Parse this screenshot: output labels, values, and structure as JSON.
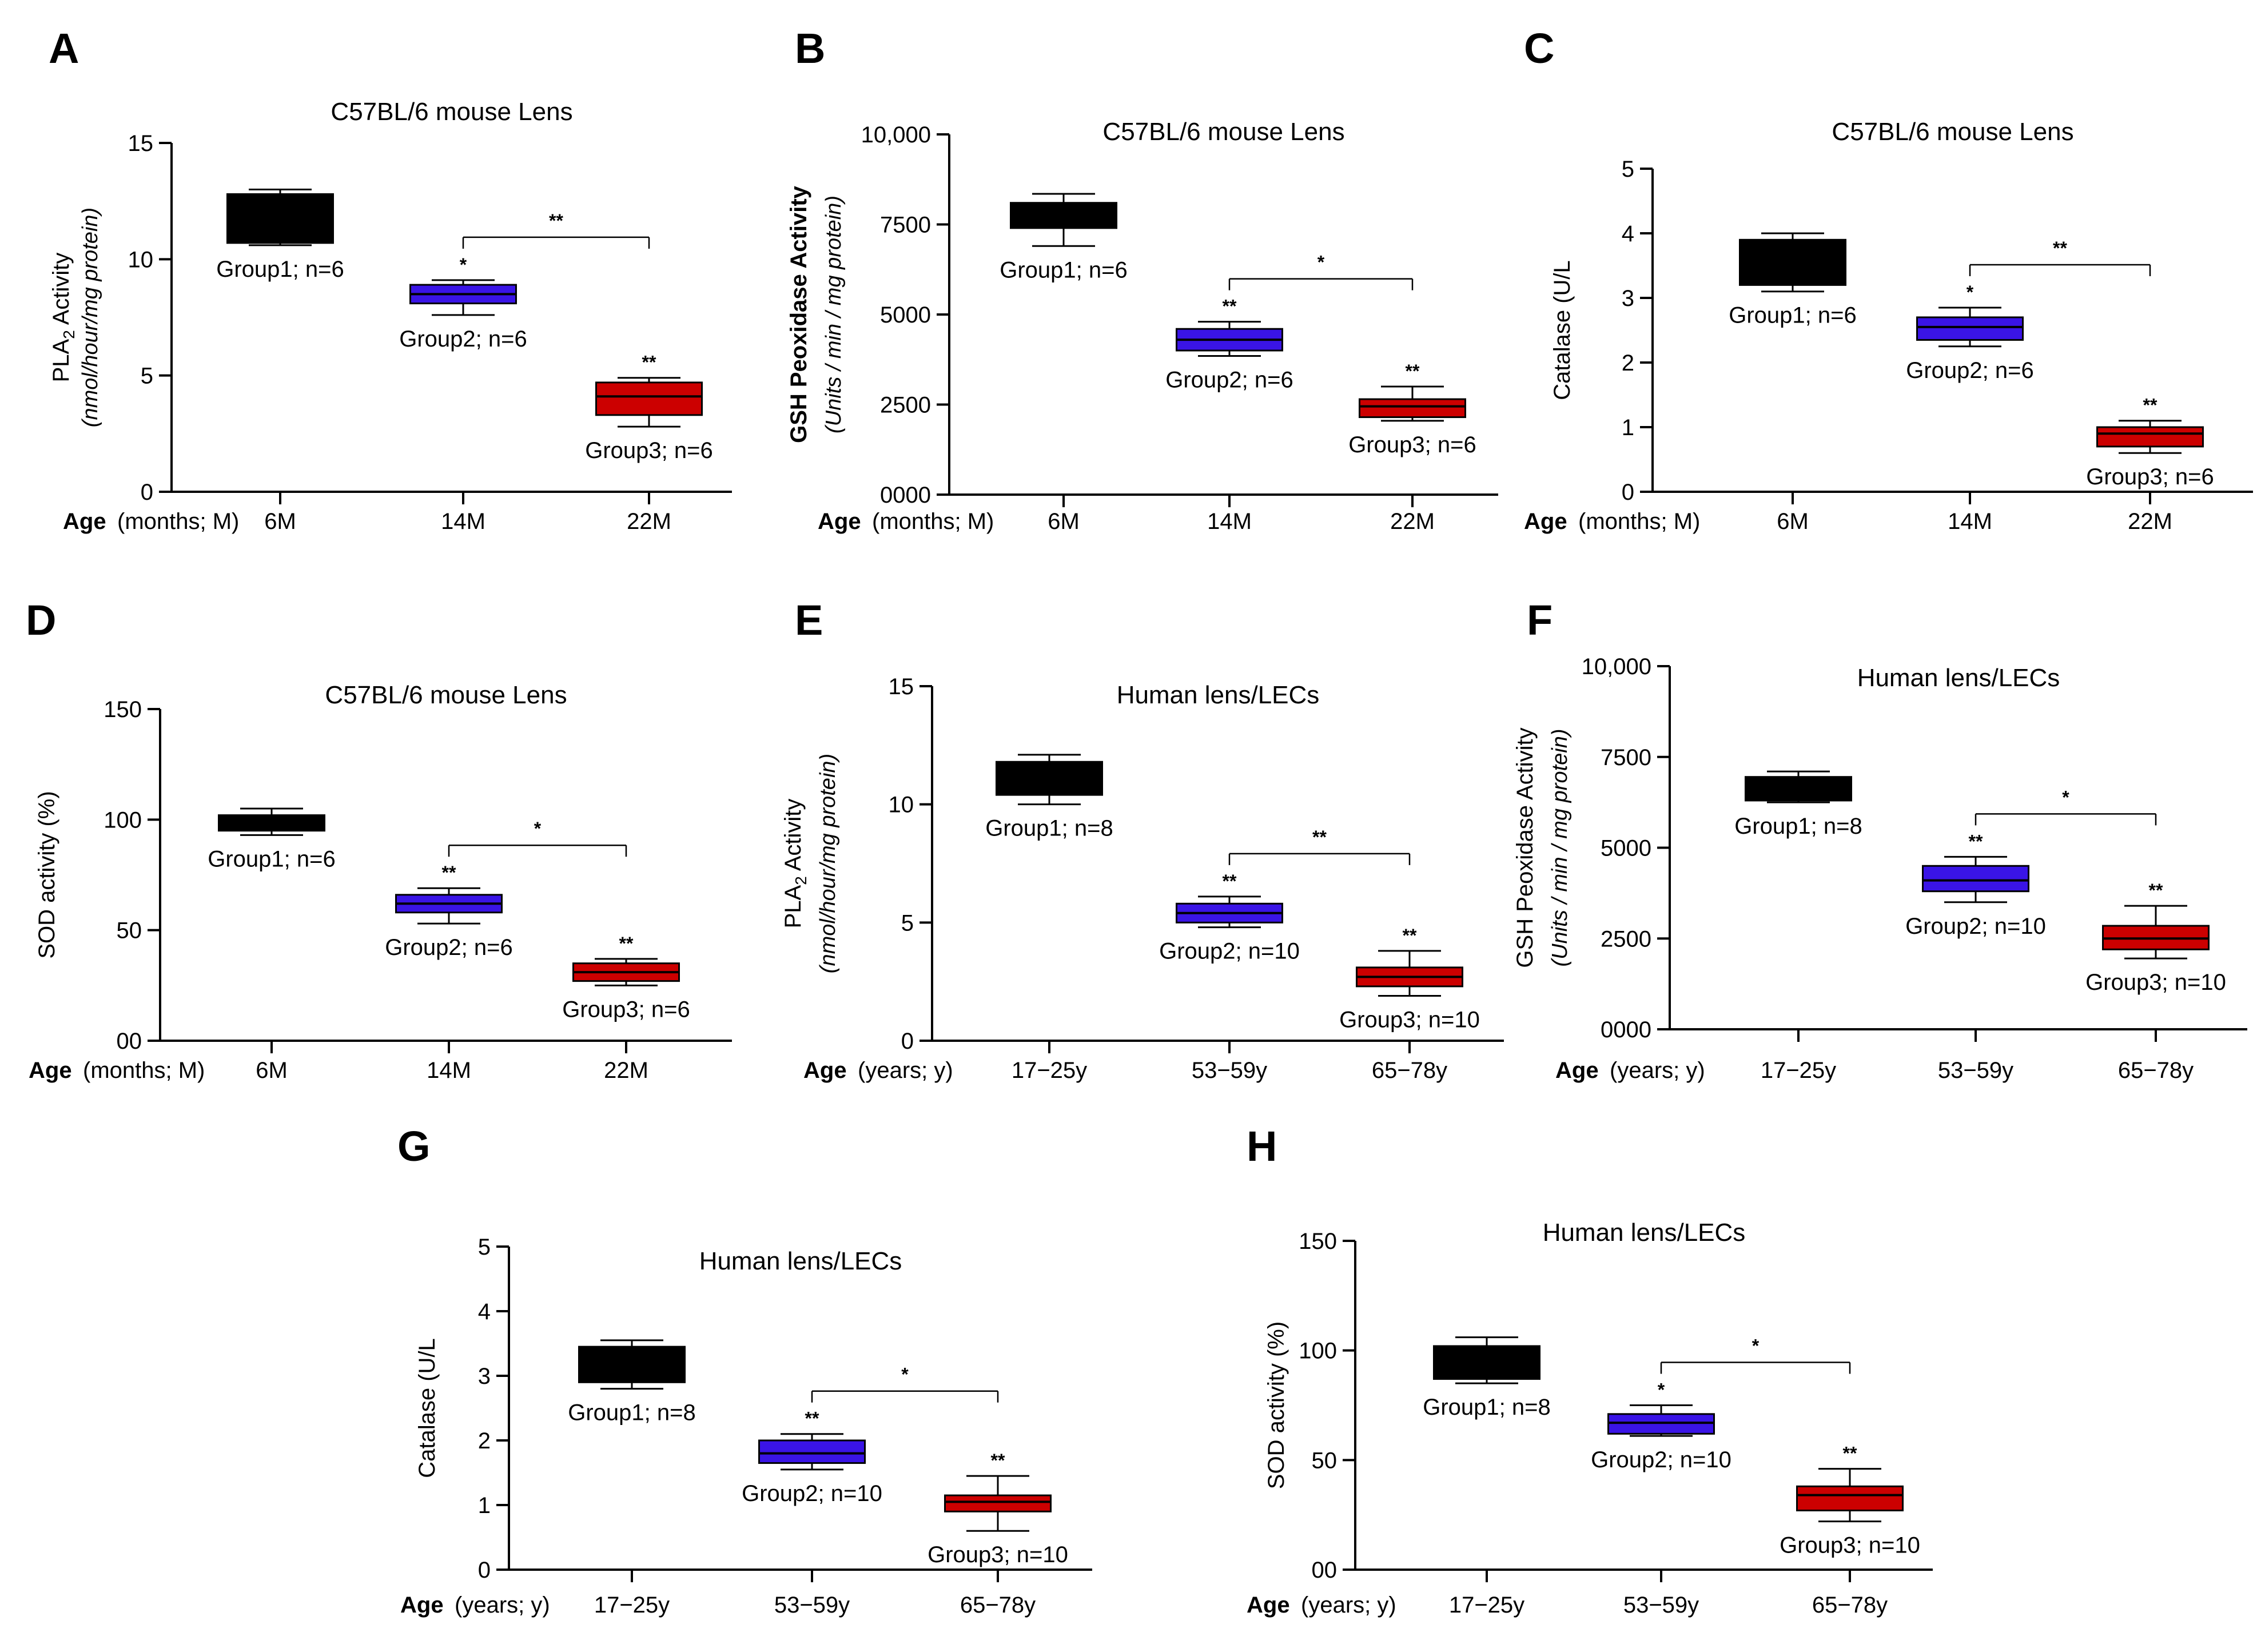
{
  "chart_data": [
    {
      "panel": "A",
      "type": "box",
      "title": "C57BL/6 mouse Lens",
      "ylabel": "PLA2 Activity",
      "ylabel_sub": "2",
      "ylabel_after": " Activity",
      "ylabel_main": "PLA",
      "ylabel_unit": "(nmol/hour/mg protein)",
      "x_prefix_bold": "Age",
      "x_prefix": "(months; M)",
      "categories": [
        "6M",
        "14M",
        "22M"
      ],
      "ylim": [
        0,
        15
      ],
      "yticks": [
        0,
        5,
        10,
        15
      ],
      "ytick_labels": [
        "0",
        "5",
        "10",
        "15"
      ],
      "groups": [
        {
          "label": "Group1; n=6",
          "color": "#000000",
          "min": 10.6,
          "q1": 10.7,
          "median": 11.9,
          "q3": 12.8,
          "max": 13.0,
          "star": ""
        },
        {
          "label": "Group2; n=6",
          "color": "#3a14e6",
          "min": 7.6,
          "q1": 8.1,
          "median": 8.5,
          "q3": 8.9,
          "max": 9.1,
          "star": "*"
        },
        {
          "label": "Group3; n=6",
          "color": "#cc0000",
          "min": 2.8,
          "q1": 3.3,
          "median": 4.1,
          "q3": 4.7,
          "max": 4.9,
          "star": "**"
        }
      ],
      "bracket_star": "**"
    },
    {
      "panel": "B",
      "type": "box",
      "title": "C57BL/6 mouse Lens",
      "ylabel_bold": "GSH Peoxidase Activity",
      "ylabel_unit": "(Units / min / mg protein)",
      "x_prefix_bold": "Age",
      "x_prefix": "(months; M)",
      "categories": [
        "6M",
        "14M",
        "22M"
      ],
      "ylim": [
        0,
        10000
      ],
      "yticks": [
        0,
        2500,
        5000,
        7500,
        10000
      ],
      "ytick_labels": [
        "0000",
        "2500",
        "5000",
        "7500",
        "10,000"
      ],
      "groups": [
        {
          "label": "Group1; n=6",
          "color": "#000000",
          "min": 6900,
          "q1": 7400,
          "median": 7750,
          "q3": 8100,
          "max": 8350,
          "star": ""
        },
        {
          "label": "Group2; n=6",
          "color": "#3a14e6",
          "min": 3850,
          "q1": 4000,
          "median": 4300,
          "q3": 4600,
          "max": 4800,
          "star": "**"
        },
        {
          "label": "Group3; n=6",
          "color": "#cc0000",
          "min": 2050,
          "q1": 2150,
          "median": 2450,
          "q3": 2650,
          "max": 3000,
          "star": "**"
        }
      ],
      "bracket_star": "*"
    },
    {
      "panel": "C",
      "type": "box",
      "title": "C57BL/6 mouse Lens",
      "ylabel": "Catalase (U/L",
      "x_prefix_bold": "Age",
      "x_prefix": "(months; M)",
      "categories": [
        "6M",
        "14M",
        "22M"
      ],
      "ylim": [
        0,
        5
      ],
      "yticks": [
        0,
        1,
        2,
        3,
        4,
        5
      ],
      "ytick_labels": [
        "0",
        "1",
        "2",
        "3",
        "4",
        "5"
      ],
      "groups": [
        {
          "label": "Group1; n=6",
          "color": "#000000",
          "min": 3.1,
          "q1": 3.2,
          "median": 3.6,
          "q3": 3.9,
          "max": 4.0,
          "star": ""
        },
        {
          "label": "Group2; n=6",
          "color": "#3a14e6",
          "min": 2.25,
          "q1": 2.35,
          "median": 2.55,
          "q3": 2.7,
          "max": 2.85,
          "star": "*"
        },
        {
          "label": "Group3; n=6",
          "color": "#cc0000",
          "min": 0.6,
          "q1": 0.7,
          "median": 0.9,
          "q3": 1.0,
          "max": 1.1,
          "star": "**"
        }
      ],
      "bracket_star": "**"
    },
    {
      "panel": "D",
      "type": "box",
      "title": "C57BL/6 mouse Lens",
      "ylabel": "SOD activity (%)",
      "x_prefix_bold": "Age",
      "x_prefix": "(months; M)",
      "categories": [
        "6M",
        "14M",
        "22M"
      ],
      "ylim": [
        0,
        150
      ],
      "yticks": [
        0,
        50,
        100,
        150
      ],
      "ytick_labels": [
        "00",
        "50",
        "100",
        "150"
      ],
      "groups": [
        {
          "label": "Group1; n=6",
          "color": "#000000",
          "min": 93,
          "q1": 95,
          "median": 98,
          "q3": 102,
          "max": 105,
          "star": ""
        },
        {
          "label": "Group2; n=6",
          "color": "#3a14e6",
          "min": 53,
          "q1": 58,
          "median": 62,
          "q3": 66,
          "max": 69,
          "star": "**"
        },
        {
          "label": "Group3; n=6",
          "color": "#cc0000",
          "min": 25,
          "q1": 27,
          "median": 31,
          "q3": 35,
          "max": 37,
          "star": "**"
        }
      ],
      "bracket_star": "*"
    },
    {
      "panel": "E",
      "type": "box",
      "title": "Human lens/LECs",
      "ylabel": "PLA2 Activity",
      "ylabel_main": "PLA",
      "ylabel_sub": "2",
      "ylabel_after": " Activity",
      "ylabel_unit": "(nmol/hour/mg protein)",
      "x_prefix_bold": "Age",
      "x_prefix": "(years; y)",
      "categories": [
        "17−25y",
        "53−59y",
        "65−78y"
      ],
      "ylim": [
        0,
        15
      ],
      "yticks": [
        0,
        5,
        10,
        15
      ],
      "ytick_labels": [
        "0",
        "5",
        "10",
        "15"
      ],
      "groups": [
        {
          "label": "Group1; n=8",
          "color": "#000000",
          "min": 10.0,
          "q1": 10.4,
          "median": 11.0,
          "q3": 11.8,
          "max": 12.1,
          "star": ""
        },
        {
          "label": "Group2; n=10",
          "color": "#3a14e6",
          "min": 4.8,
          "q1": 5.0,
          "median": 5.4,
          "q3": 5.8,
          "max": 6.1,
          "star": "**"
        },
        {
          "label": "Group3; n=10",
          "color": "#cc0000",
          "min": 1.9,
          "q1": 2.3,
          "median": 2.7,
          "q3": 3.1,
          "max": 3.8,
          "star": "**"
        }
      ],
      "bracket_star": "**"
    },
    {
      "panel": "F",
      "type": "box",
      "title": "Human lens/LECs",
      "ylabel": "GSH Peoxidase Activity",
      "ylabel_unit": "(Units / min / mg protein)",
      "x_prefix_bold": "Age",
      "x_prefix": "(years; y)",
      "categories": [
        "17−25y",
        "53−59y",
        "65−78y"
      ],
      "ylim": [
        0,
        10000
      ],
      "yticks": [
        0,
        2500,
        5000,
        7500,
        10000
      ],
      "ytick_labels": [
        "0000",
        "2500",
        "5000",
        "7500",
        "10,000"
      ],
      "groups": [
        {
          "label": "Group1; n=8",
          "color": "#000000",
          "min": 6250,
          "q1": 6300,
          "median": 6600,
          "q3": 6950,
          "max": 7100,
          "star": ""
        },
        {
          "label": "Group2; n=10",
          "color": "#3a14e6",
          "min": 3500,
          "q1": 3800,
          "median": 4100,
          "q3": 4500,
          "max": 4750,
          "star": "**"
        },
        {
          "label": "Group3; n=10",
          "color": "#cc0000",
          "min": 1950,
          "q1": 2200,
          "median": 2500,
          "q3": 2850,
          "max": 3400,
          "star": "**"
        }
      ],
      "bracket_star": "*"
    },
    {
      "panel": "G",
      "type": "box",
      "title": "Human lens/LECs",
      "ylabel": "Catalase (U/L",
      "x_prefix_bold": "Age",
      "x_prefix": "(years; y)",
      "categories": [
        "17−25y",
        "53−59y",
        "65−78y"
      ],
      "ylim": [
        0,
        5
      ],
      "yticks": [
        0,
        1,
        2,
        3,
        4,
        5
      ],
      "ytick_labels": [
        "0",
        "1",
        "2",
        "3",
        "4",
        "5"
      ],
      "groups": [
        {
          "label": "Group1; n=8",
          "color": "#000000",
          "min": 2.8,
          "q1": 2.9,
          "median": 3.2,
          "q3": 3.45,
          "max": 3.55,
          "star": ""
        },
        {
          "label": "Group2; n=10",
          "color": "#3a14e6",
          "min": 1.55,
          "q1": 1.65,
          "median": 1.8,
          "q3": 2.0,
          "max": 2.1,
          "star": "**"
        },
        {
          "label": "Group3; n=10",
          "color": "#cc0000",
          "min": 0.6,
          "q1": 0.9,
          "median": 1.05,
          "q3": 1.15,
          "max": 1.45,
          "star": "**"
        }
      ],
      "bracket_star": "*"
    },
    {
      "panel": "H",
      "type": "box",
      "title": "Human lens/LECs",
      "ylabel": "SOD activity (%)",
      "x_prefix_bold": "Age",
      "x_prefix": "(years; y)",
      "categories": [
        "17−25y",
        "53−59y",
        "65−78y"
      ],
      "ylim": [
        0,
        150
      ],
      "yticks": [
        0,
        50,
        100,
        150
      ],
      "ytick_labels": [
        "00",
        "50",
        "100",
        "150"
      ],
      "groups": [
        {
          "label": "Group1; n=8",
          "color": "#000000",
          "min": 85,
          "q1": 87,
          "median": 95,
          "q3": 102,
          "max": 106,
          "star": ""
        },
        {
          "label": "Group2; n=10",
          "color": "#3a14e6",
          "min": 61,
          "q1": 62,
          "median": 67,
          "q3": 71,
          "max": 75,
          "star": "*"
        },
        {
          "label": "Group3; n=10",
          "color": "#cc0000",
          "min": 22,
          "q1": 27,
          "median": 34,
          "q3": 38,
          "max": 46,
          "star": "**"
        }
      ],
      "bracket_star": "*"
    }
  ]
}
